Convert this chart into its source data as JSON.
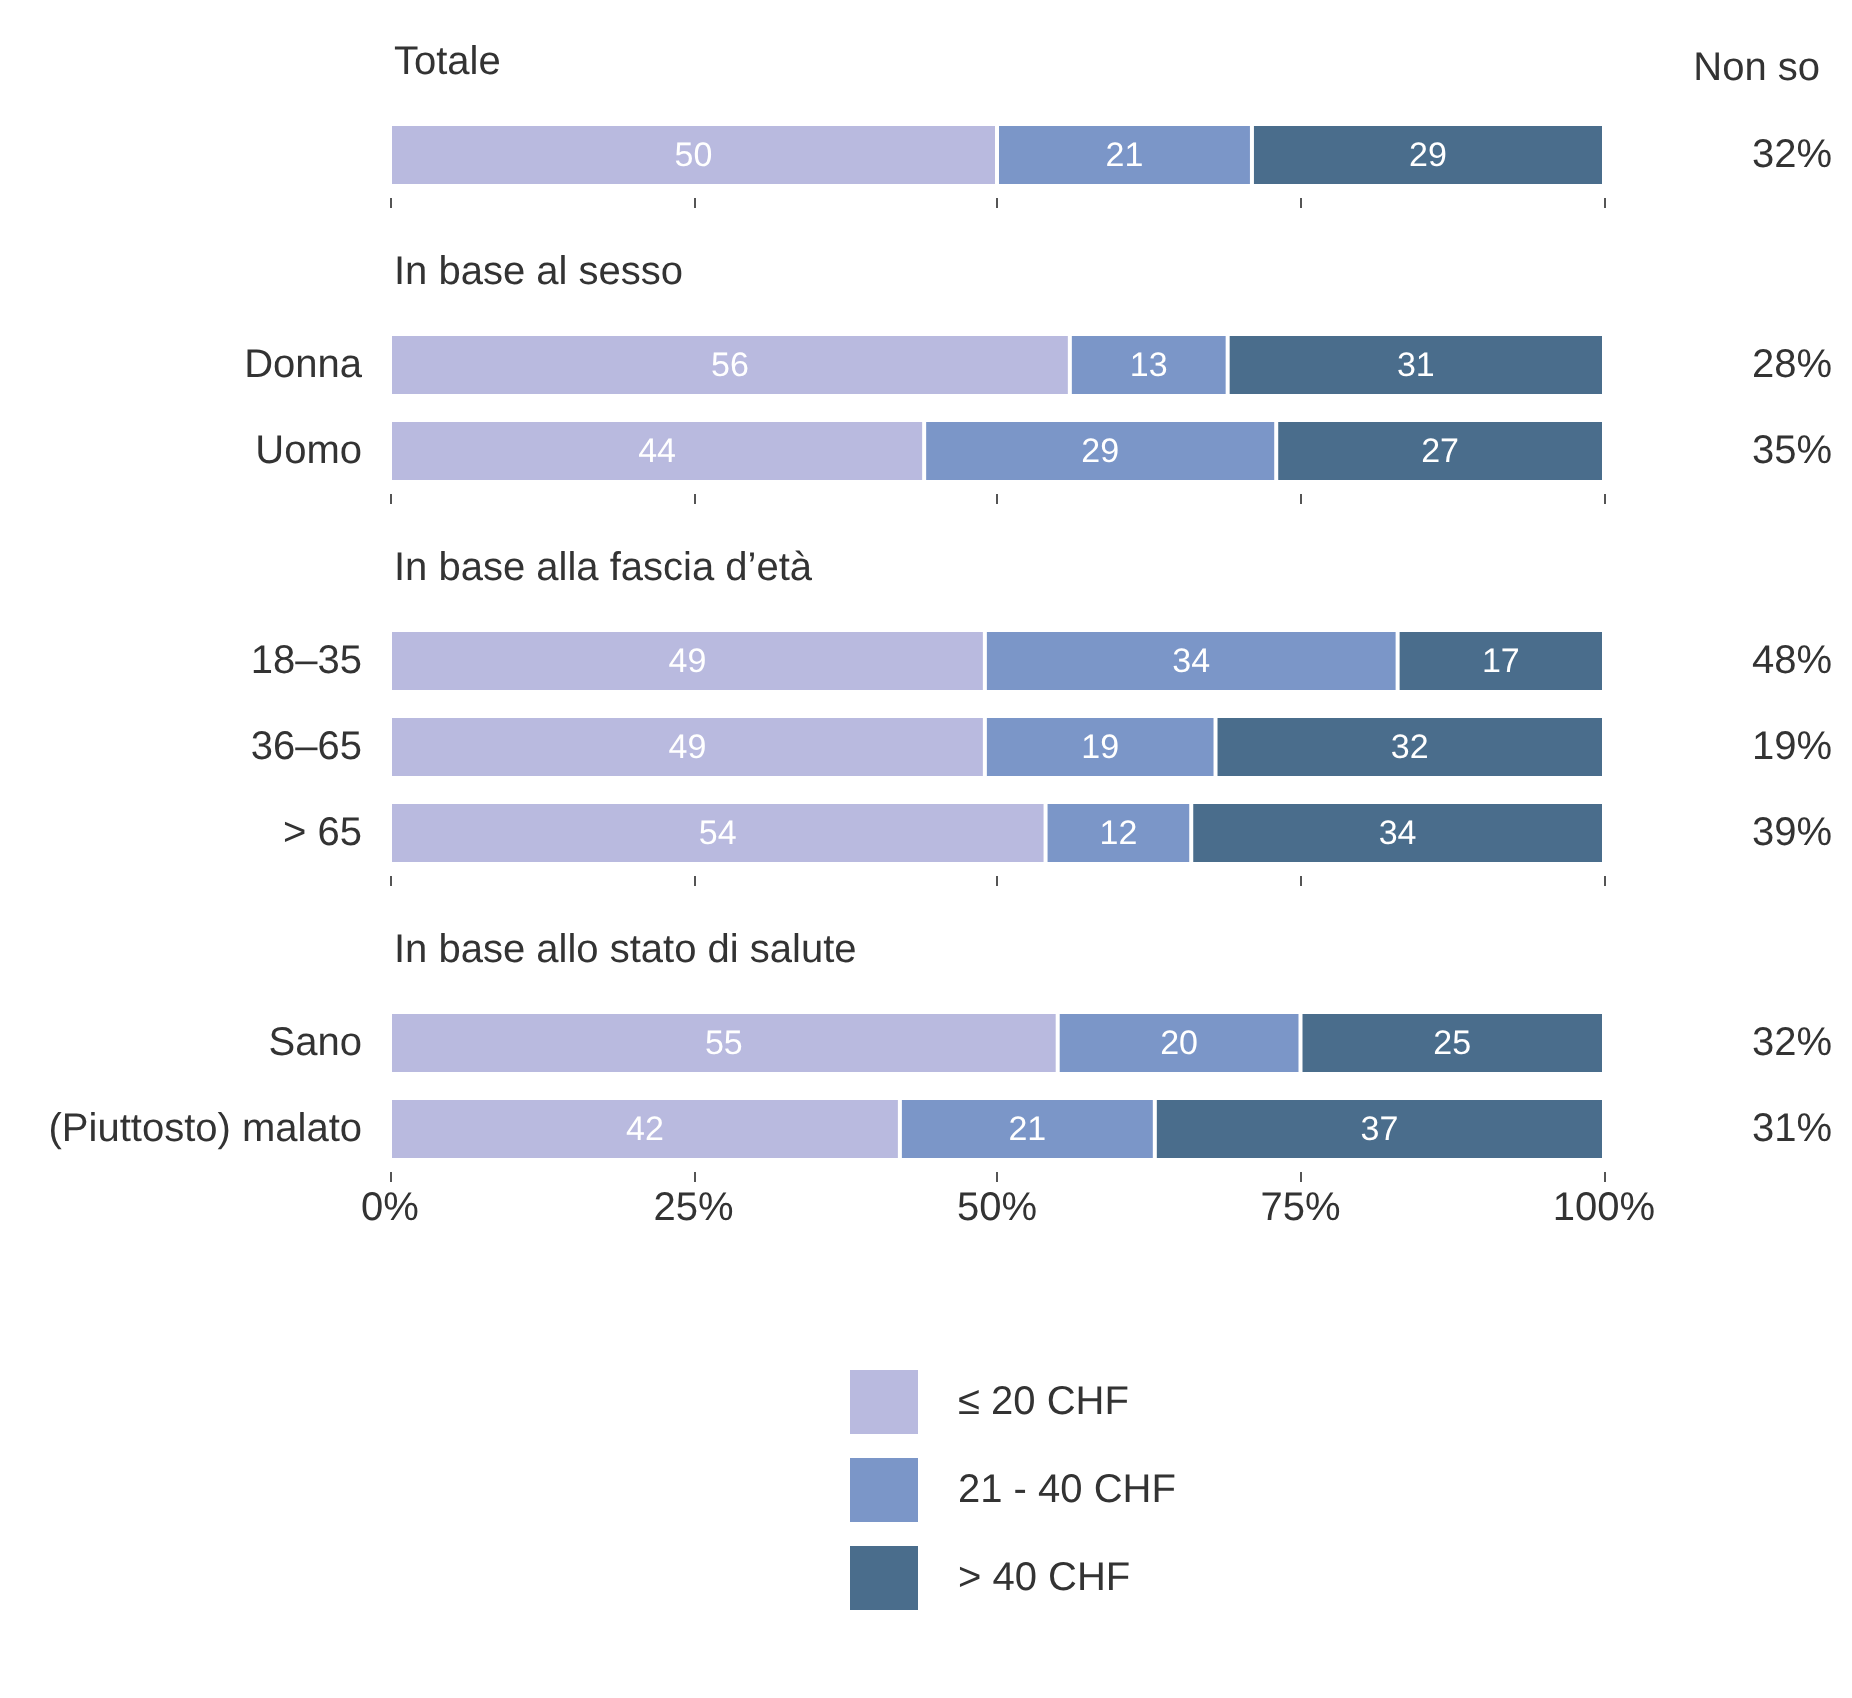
{
  "chart_data": [
    {
      "type": "bar",
      "orientation": "horizontal",
      "stacked": true,
      "title": "Totale",
      "categories": [
        null
      ],
      "series": [
        {
          "color": "#b9badf",
          "values": [
            50
          ]
        },
        {
          "color": "#7b96c8",
          "values": [
            21
          ]
        },
        {
          "color": "#4a6d8c",
          "values": [
            29
          ]
        }
      ],
      "xlim": [
        0,
        100
      ],
      "xticks": [
        0,
        25,
        50,
        75,
        100
      ],
      "tick_labels": "y",
      "data_labels": true,
      "grid": false,
      "legend": false,
      "annotations": [
        "Non so",
        "32%"
      ]
    },
    {
      "type": "bar",
      "orientation": "horizontal",
      "stacked": true,
      "title": "In base al sesso",
      "categories": [
        "Donna",
        "Uomo"
      ],
      "series": [
        {
          "color": "#b9badf",
          "values": [
            56,
            44
          ]
        },
        {
          "color": "#7b96c8",
          "values": [
            13,
            29
          ]
        },
        {
          "color": "#4a6d8c",
          "values": [
            31,
            27
          ]
        }
      ],
      "xlim": [
        0,
        100
      ],
      "xticks": [
        0,
        25,
        50,
        75,
        100
      ],
      "tick_labels": "y",
      "data_labels": true,
      "grid": false,
      "legend": false,
      "annotations": [
        "28%",
        "35%"
      ]
    },
    {
      "type": "bar",
      "orientation": "horizontal",
      "stacked": true,
      "title": "In base alla fascia d’età",
      "categories": [
        "18–35",
        "36–65",
        "> 65"
      ],
      "series": [
        {
          "color": "#b9badf",
          "values": [
            49,
            49,
            54
          ]
        },
        {
          "color": "#7b96c8",
          "values": [
            34,
            19,
            12
          ]
        },
        {
          "color": "#4a6d8c",
          "values": [
            17,
            32,
            34
          ]
        }
      ],
      "xlim": [
        0,
        100
      ],
      "xticks": [
        0,
        25,
        50,
        75,
        100
      ],
      "tick_labels": "y",
      "data_labels": true,
      "grid": false,
      "legend": false,
      "annotations": [
        "48%",
        "19%",
        "39%"
      ]
    },
    {
      "type": "bar",
      "orientation": "horizontal",
      "stacked": true,
      "title": "In base allo stato di salute",
      "categories": [
        "Sano",
        "(Piuttosto) malato"
      ],
      "series": [
        {
          "name": "≤ 20 CHF",
          "color": "#b9badf",
          "values": [
            55,
            42
          ]
        },
        {
          "name": "21 - 40 CHF",
          "color": "#7b96c8",
          "values": [
            20,
            21
          ]
        },
        {
          "name": "> 40 CHF",
          "color": "#4a6d8c",
          "values": [
            25,
            37
          ]
        }
      ],
      "xlim": [
        0,
        100
      ],
      "xticks": [
        {
          "value": 0,
          "label": "0%"
        },
        {
          "value": 25,
          "label": "25%"
        },
        {
          "value": 50,
          "label": "50%"
        },
        {
          "value": 75,
          "label": "75%"
        },
        {
          "value": 100,
          "label": "100%"
        }
      ],
      "data_labels": true,
      "grid": false,
      "legend": "bottom",
      "annotations": [
        "32%",
        "31%"
      ]
    }
  ]
}
